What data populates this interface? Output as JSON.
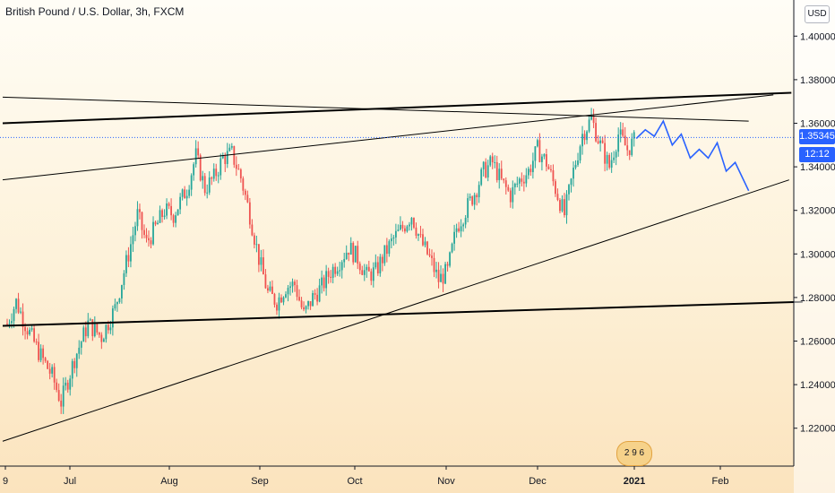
{
  "chart_data": {
    "type": "candlestick",
    "title": "British Pound / U.S. Dollar, 3h, FXCM",
    "currency": "USD",
    "y_ticks": [
      "1.40000",
      "1.38000",
      "1.36000",
      "1.34000",
      "1.32000",
      "1.30000",
      "1.28000",
      "1.26000",
      "1.24000",
      "1.22000"
    ],
    "x_ticks": [
      "9",
      "Jul",
      "Aug",
      "Sep",
      "Oct",
      "Nov",
      "Dec",
      "2021",
      "Feb"
    ],
    "ylim": [
      1.21,
      1.41
    ],
    "last_price": "1.35345",
    "countdown": "12:12",
    "badge": "2 9 6",
    "colors": {
      "up": "#26a69a",
      "down": "#ef5350",
      "projection": "#2962ff",
      "trendline": "#000000",
      "price_line": "#2962ff"
    },
    "price_path": [
      [
        0,
        1.268
      ],
      [
        4,
        1.278
      ],
      [
        8,
        1.268
      ],
      [
        14,
        1.255
      ],
      [
        20,
        1.244
      ],
      [
        24,
        1.232
      ],
      [
        30,
        1.252
      ],
      [
        36,
        1.268
      ],
      [
        42,
        1.262
      ],
      [
        48,
        1.275
      ],
      [
        54,
        1.3
      ],
      [
        58,
        1.318
      ],
      [
        62,
        1.305
      ],
      [
        66,
        1.312
      ],
      [
        70,
        1.32
      ],
      [
        74,
        1.318
      ],
      [
        80,
        1.33
      ],
      [
        84,
        1.345
      ],
      [
        88,
        1.33
      ],
      [
        92,
        1.335
      ],
      [
        96,
        1.344
      ],
      [
        100,
        1.346
      ],
      [
        104,
        1.335
      ],
      [
        108,
        1.318
      ],
      [
        112,
        1.298
      ],
      [
        116,
        1.282
      ],
      [
        120,
        1.278
      ],
      [
        124,
        1.285
      ],
      [
        128,
        1.286
      ],
      [
        132,
        1.272
      ],
      [
        136,
        1.28
      ],
      [
        140,
        1.285
      ],
      [
        144,
        1.292
      ],
      [
        148,
        1.297
      ],
      [
        152,
        1.303
      ],
      [
        156,
        1.298
      ],
      [
        160,
        1.29
      ],
      [
        164,
        1.292
      ],
      [
        168,
        1.3
      ],
      [
        172,
        1.307
      ],
      [
        176,
        1.312
      ],
      [
        180,
        1.318
      ],
      [
        184,
        1.306
      ],
      [
        188,
        1.298
      ],
      [
        192,
        1.288
      ],
      [
        196,
        1.292
      ],
      [
        200,
        1.312
      ],
      [
        204,
        1.32
      ],
      [
        208,
        1.328
      ],
      [
        212,
        1.338
      ],
      [
        216,
        1.342
      ],
      [
        220,
        1.333
      ],
      [
        224,
        1.327
      ],
      [
        228,
        1.334
      ],
      [
        232,
        1.338
      ],
      [
        236,
        1.348
      ],
      [
        240,
        1.342
      ],
      [
        244,
        1.33
      ],
      [
        248,
        1.318
      ],
      [
        252,
        1.338
      ],
      [
        256,
        1.355
      ],
      [
        260,
        1.362
      ],
      [
        264,
        1.35
      ],
      [
        268,
        1.34
      ],
      [
        272,
        1.355
      ],
      [
        276,
        1.348
      ],
      [
        280,
        1.353
      ]
    ],
    "projection": [
      [
        280,
        1.353
      ],
      [
        284,
        1.357
      ],
      [
        288,
        1.354
      ],
      [
        292,
        1.361
      ],
      [
        296,
        1.35
      ],
      [
        300,
        1.355
      ],
      [
        304,
        1.344
      ],
      [
        308,
        1.348
      ],
      [
        312,
        1.344
      ],
      [
        316,
        1.351
      ],
      [
        320,
        1.338
      ],
      [
        324,
        1.342
      ],
      [
        330,
        1.329
      ]
    ],
    "trendlines": [
      {
        "from": [
          -2,
          1.36
        ],
        "to": [
          349,
          1.374
        ],
        "width": 2
      },
      {
        "from": [
          -2,
          1.372
        ],
        "to": [
          330,
          1.361
        ],
        "width": 1
      },
      {
        "from": [
          -2,
          1.334
        ],
        "to": [
          341,
          1.373
        ],
        "width": 1
      },
      {
        "from": [
          -2,
          1.214
        ],
        "to": [
          348,
          1.334
        ],
        "width": 1
      },
      {
        "from": [
          -2,
          1.267
        ],
        "to": [
          354,
          1.278
        ],
        "width": 2
      }
    ]
  }
}
